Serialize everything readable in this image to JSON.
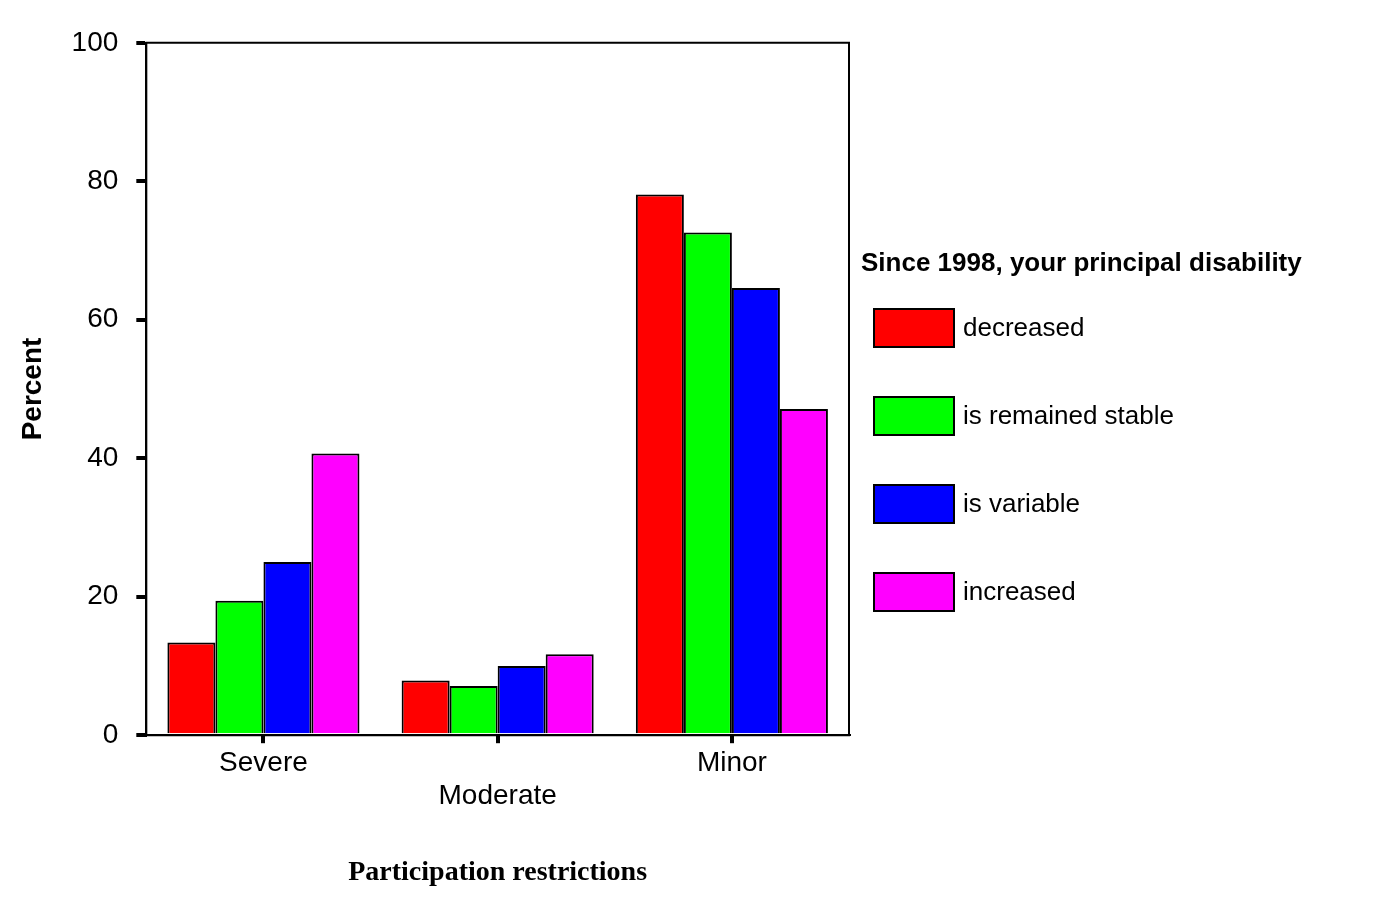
{
  "chart_data": {
    "type": "bar",
    "xlabel": "Participation restrictions",
    "ylabel": "Percent",
    "legend_title": "Since 1998, your principal disability",
    "categories": [
      "Severe",
      "Moderate",
      "Minor"
    ],
    "series": [
      {
        "name": "decreased",
        "color": "#ff0000",
        "values": [
          13.4,
          7.9,
          78.1
        ]
      },
      {
        "name": "is remained stable",
        "color": "#00ff00",
        "values": [
          19.4,
          7.1,
          72.6
        ]
      },
      {
        "name": "is variable",
        "color": "#0000ff",
        "values": [
          25.0,
          10.0,
          64.6
        ]
      },
      {
        "name": "increased",
        "color": "#ff00ff",
        "values": [
          40.7,
          11.7,
          47.1
        ]
      }
    ],
    "ylim": [
      0,
      100
    ],
    "yticks": [
      0,
      20,
      40,
      60,
      80,
      100
    ],
    "grid": false,
    "legend": "right"
  }
}
